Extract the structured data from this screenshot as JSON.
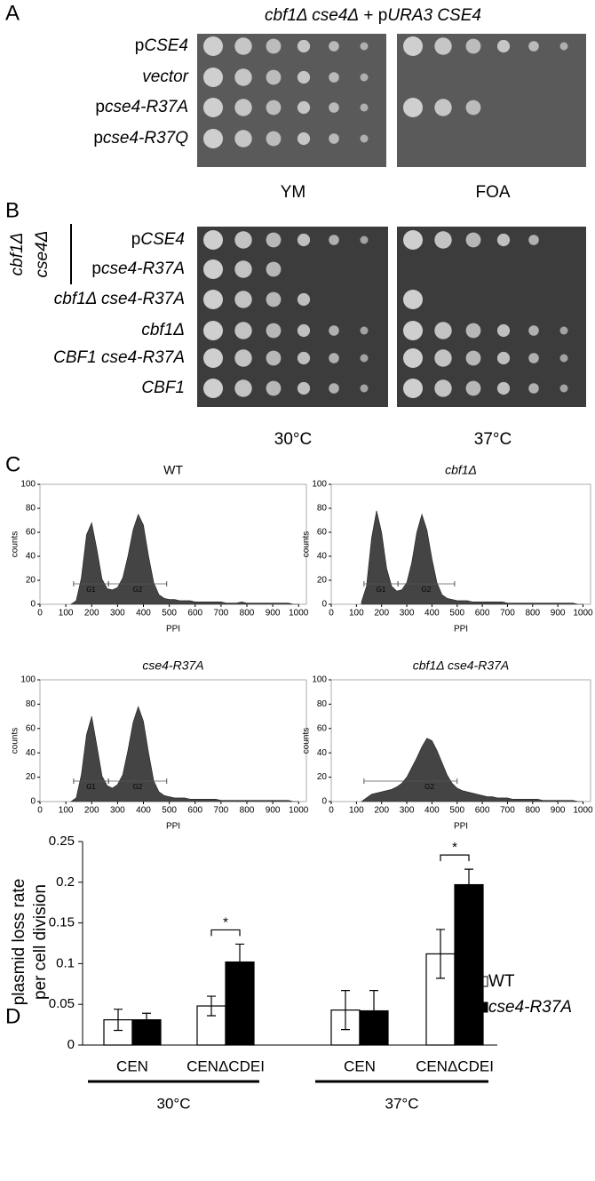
{
  "panel_a": {
    "letter": "A",
    "title": [
      {
        "text": "cbf1Δ cse4Δ",
        "italic": true
      },
      {
        "text": " + p"
      },
      {
        "text": "URA3 CSE4",
        "italic": true
      }
    ],
    "rows": [
      [
        {
          "text": "p"
        },
        {
          "text": "CSE4",
          "italic": true
        }
      ],
      [
        {
          "text": "vector",
          "italic": true
        }
      ],
      [
        {
          "text": "p"
        },
        {
          "text": "cse4-R37A",
          "italic": true
        }
      ],
      [
        {
          "text": "p"
        },
        {
          "text": "cse4-R37Q",
          "italic": true
        }
      ]
    ],
    "columns": [
      "YM",
      "FOA"
    ]
  },
  "panel_b": {
    "letter": "B",
    "group_label": [
      "cbf1Δ",
      "cse4Δ"
    ],
    "rows": [
      [
        {
          "text": "p"
        },
        {
          "text": "CSE4",
          "italic": true
        }
      ],
      [
        {
          "text": "p"
        },
        {
          "text": "cse4-R37A",
          "italic": true
        }
      ],
      [
        {
          "text": "cbf1Δ cse4-R37A",
          "italic": true
        }
      ],
      [
        {
          "text": "cbf1Δ",
          "italic": true
        }
      ],
      [
        {
          "text": "CBF1 cse4-R37A",
          "italic": true
        }
      ],
      [
        {
          "text": "CBF1",
          "italic": true
        }
      ]
    ],
    "columns": [
      "30°C",
      "37°C"
    ]
  },
  "panel_c_letter": "C",
  "panel_d_letter": "D",
  "chart_data": [
    {
      "type": "area",
      "title": "WT",
      "italic": false,
      "xlabel": "PPI",
      "ylabel": "counts",
      "color": "#444444",
      "annotations": [
        "G1",
        "G2"
      ],
      "x": [
        120,
        140,
        160,
        180,
        200,
        220,
        240,
        260,
        280,
        300,
        320,
        340,
        360,
        380,
        400,
        420,
        440,
        460,
        480,
        500,
        520,
        540,
        560,
        580,
        600,
        620,
        640,
        660,
        680,
        700,
        720,
        740,
        760,
        780,
        800,
        820,
        840,
        860,
        880,
        900,
        920,
        940,
        960,
        980,
        1000
      ],
      "values": [
        0,
        3,
        22,
        58,
        68,
        46,
        21,
        13,
        12,
        14,
        22,
        40,
        62,
        75,
        66,
        40,
        18,
        8,
        5,
        4,
        4,
        3,
        3,
        3,
        2,
        2,
        2,
        2,
        2,
        2,
        1,
        1,
        1,
        2,
        1,
        1,
        1,
        1,
        1,
        1,
        1,
        1,
        1,
        0,
        0
      ],
      "xlim": [
        0,
        1030
      ],
      "ylim": [
        0,
        100
      ],
      "xticks": [
        0,
        100,
        200,
        300,
        400,
        500,
        600,
        700,
        800,
        900,
        1000
      ],
      "yticks": [
        0,
        20,
        40,
        60,
        80,
        100
      ]
    },
    {
      "type": "area",
      "title": "cbf1Δ",
      "italic": true,
      "xlabel": "PPI",
      "ylabel": "counts",
      "color": "#444444",
      "annotations": [
        "G1",
        "G2"
      ],
      "x": [
        120,
        140,
        160,
        180,
        200,
        220,
        240,
        260,
        280,
        300,
        320,
        340,
        360,
        380,
        400,
        420,
        440,
        460,
        480,
        500,
        520,
        540,
        560,
        580,
        600,
        620,
        640,
        660,
        680,
        700,
        720,
        740,
        760,
        780,
        800,
        820,
        840,
        860,
        880,
        900,
        920,
        940,
        960,
        980,
        1000
      ],
      "values": [
        2,
        15,
        55,
        78,
        60,
        30,
        15,
        11,
        12,
        18,
        35,
        60,
        75,
        62,
        38,
        18,
        8,
        5,
        4,
        3,
        3,
        3,
        2,
        2,
        2,
        2,
        2,
        2,
        2,
        1,
        1,
        1,
        1,
        1,
        1,
        1,
        1,
        1,
        1,
        1,
        1,
        1,
        1,
        0,
        0
      ],
      "xlim": [
        0,
        1030
      ],
      "ylim": [
        0,
        100
      ],
      "xticks": [
        0,
        100,
        200,
        300,
        400,
        500,
        600,
        700,
        800,
        900,
        1000
      ],
      "yticks": [
        0,
        20,
        40,
        60,
        80,
        100
      ]
    },
    {
      "type": "area",
      "title": "cse4-R37A",
      "italic": true,
      "xlabel": "PPI",
      "ylabel": "counts",
      "color": "#444444",
      "annotations": [
        "G1",
        "G2"
      ],
      "x": [
        120,
        140,
        160,
        180,
        200,
        220,
        240,
        260,
        280,
        300,
        320,
        340,
        360,
        380,
        400,
        420,
        440,
        460,
        480,
        500,
        520,
        540,
        560,
        580,
        600,
        620,
        640,
        660,
        680,
        700,
        720,
        740,
        760,
        780,
        800,
        820,
        840,
        860,
        880,
        900,
        920,
        940,
        960,
        980,
        1000
      ],
      "values": [
        0,
        3,
        22,
        55,
        70,
        46,
        21,
        13,
        11,
        14,
        22,
        42,
        65,
        78,
        66,
        40,
        17,
        8,
        5,
        4,
        3,
        3,
        3,
        2,
        2,
        2,
        2,
        2,
        2,
        1,
        1,
        1,
        1,
        1,
        1,
        1,
        1,
        1,
        1,
        1,
        1,
        1,
        1,
        0,
        0
      ],
      "xlim": [
        0,
        1030
      ],
      "ylim": [
        0,
        100
      ],
      "xticks": [
        0,
        100,
        200,
        300,
        400,
        500,
        600,
        700,
        800,
        900,
        1000
      ],
      "yticks": [
        0,
        20,
        40,
        60,
        80,
        100
      ]
    },
    {
      "type": "area",
      "title": "cbf1Δ cse4-R37A",
      "italic": true,
      "xlabel": "PPI",
      "ylabel": "counts",
      "color": "#444444",
      "annotations": [
        "G2"
      ],
      "x": [
        120,
        140,
        160,
        180,
        200,
        220,
        240,
        260,
        280,
        300,
        320,
        340,
        360,
        380,
        400,
        420,
        440,
        460,
        480,
        500,
        520,
        540,
        560,
        580,
        600,
        620,
        640,
        660,
        680,
        700,
        720,
        740,
        760,
        780,
        800,
        820,
        840,
        860,
        880,
        900,
        920,
        940,
        960,
        980,
        1000
      ],
      "values": [
        0,
        3,
        6,
        7,
        8,
        9,
        10,
        12,
        15,
        20,
        28,
        36,
        45,
        52,
        50,
        42,
        32,
        22,
        15,
        11,
        9,
        8,
        7,
        6,
        5,
        4,
        4,
        3,
        3,
        3,
        2,
        2,
        2,
        2,
        2,
        2,
        1,
        1,
        1,
        1,
        1,
        1,
        1,
        0,
        0
      ],
      "xlim": [
        0,
        1030
      ],
      "ylim": [
        0,
        100
      ],
      "xticks": [
        0,
        100,
        200,
        300,
        400,
        500,
        600,
        700,
        800,
        900,
        1000
      ],
      "yticks": [
        0,
        20,
        40,
        60,
        80,
        100
      ]
    },
    {
      "type": "bar",
      "categories": [
        "CEN",
        "CENΔCDEI",
        "CEN",
        "CENΔCDEI"
      ],
      "groups": [
        "30°C",
        "37°C"
      ],
      "ylabel": [
        "plasmid loss rate",
        "per cell division"
      ],
      "series": [
        {
          "name": "WT",
          "italic": false,
          "color": "#ffffff",
          "values": [
            0.031,
            0.048,
            0.043,
            0.112
          ],
          "errors": [
            0.013,
            0.012,
            0.024,
            0.03
          ]
        },
        {
          "name": "cse4-R37A",
          "italic": true,
          "color": "#000000",
          "values": [
            0.031,
            0.102,
            0.042,
            0.197
          ],
          "errors": [
            0.008,
            0.022,
            0.025,
            0.019
          ]
        }
      ],
      "annotations": [
        "*",
        "*"
      ],
      "ylim": [
        0,
        0.25
      ],
      "yticks": [
        0,
        0.05,
        0.1,
        0.15,
        0.2,
        0.25
      ],
      "legend": "right"
    }
  ]
}
